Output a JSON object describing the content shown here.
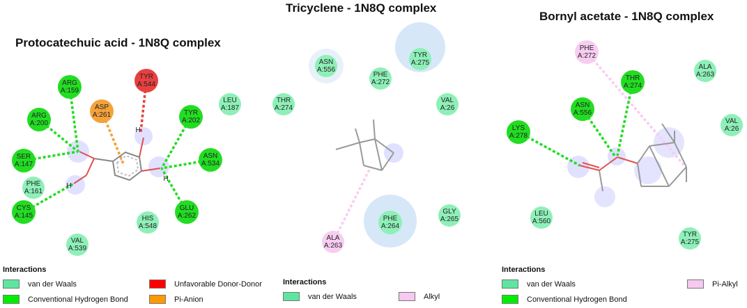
{
  "panels": [
    {
      "title": "Protocatechuic acid - 1N8Q complex",
      "residues": [
        {
          "name": "ARG",
          "id": "A:159",
          "type": "hbond"
        },
        {
          "name": "ARG",
          "id": "A:200",
          "type": "hbond"
        },
        {
          "name": "SER",
          "id": "A:147",
          "type": "hbond"
        },
        {
          "name": "PHE",
          "id": "A:161",
          "type": "vdw"
        },
        {
          "name": "CYS",
          "id": "A:145",
          "type": "hbond"
        },
        {
          "name": "VAL",
          "id": "A:539",
          "type": "vdw"
        },
        {
          "name": "ASP",
          "id": "A:261",
          "type": "pi-anion"
        },
        {
          "name": "TYR",
          "id": "A:544",
          "type": "unfavorable"
        },
        {
          "name": "TYR",
          "id": "A:202",
          "type": "hbond"
        },
        {
          "name": "LEU",
          "id": "A:187",
          "type": "vdw"
        },
        {
          "name": "ASN",
          "id": "A:534",
          "type": "hbond"
        },
        {
          "name": "GLU",
          "id": "A:262",
          "type": "hbond"
        },
        {
          "name": "HIS",
          "id": "A:548",
          "type": "vdw"
        }
      ],
      "atom_labels": [
        "H",
        "H",
        "H"
      ],
      "legend_title": "Interactions",
      "legend": [
        {
          "label": "van der Waals",
          "color": "#5ee6a0"
        },
        {
          "label": "Unfavorable Donor-Donor",
          "color": "#ff0000"
        },
        {
          "label": "Conventional Hydrogen Bond",
          "color": "#00ee00"
        },
        {
          "label": "Pi-Anion",
          "color": "#ff9900"
        }
      ]
    },
    {
      "title": "Tricyclene - 1N8Q complex",
      "residues": [
        {
          "name": "ASN",
          "id": "A:556",
          "type": "vdw"
        },
        {
          "name": "TYR",
          "id": "A:275",
          "type": "vdw"
        },
        {
          "name": "PHE",
          "id": "A:272",
          "type": "vdw"
        },
        {
          "name": "THR",
          "id": "A:274",
          "type": "vdw"
        },
        {
          "name": "VAL",
          "id": "A:26",
          "type": "vdw"
        },
        {
          "name": "GLY",
          "id": "A:265",
          "type": "vdw"
        },
        {
          "name": "PHE",
          "id": "A:264",
          "type": "vdw"
        },
        {
          "name": "ALA",
          "id": "A:263",
          "type": "alkyl"
        }
      ],
      "legend_title": "Interactions",
      "legend": [
        {
          "label": "van der Waals",
          "color": "#5ee6a0"
        },
        {
          "label": "Alkyl",
          "color": "#f7c8f0"
        }
      ]
    },
    {
      "title": "Bornyl acetate - 1N8Q complex",
      "residues": [
        {
          "name": "PHE",
          "id": "A:272",
          "type": "pi-alkyl"
        },
        {
          "name": "ALA",
          "id": "A:263",
          "type": "vdw"
        },
        {
          "name": "THR",
          "id": "A:274",
          "type": "hbond"
        },
        {
          "name": "ASN",
          "id": "A:556",
          "type": "hbond"
        },
        {
          "name": "LYS",
          "id": "A:278",
          "type": "hbond"
        },
        {
          "name": "VAL",
          "id": "A:26",
          "type": "vdw"
        },
        {
          "name": "LEU",
          "id": "A:560",
          "type": "vdw"
        },
        {
          "name": "TYR",
          "id": "A:275",
          "type": "vdw"
        }
      ],
      "legend_title": "Interactions",
      "legend": [
        {
          "label": "van der Waals",
          "color": "#5ee6a0"
        },
        {
          "label": "Pi-Alkyl",
          "color": "#f7c8f0"
        },
        {
          "label": "Conventional Hydrogen Bond",
          "color": "#00ee00"
        }
      ]
    }
  ],
  "colors": {
    "vdw": "#8ef0b8",
    "hbond": "#22dd22",
    "pi-anion": "#f4a23a",
    "unfavorable": "#e84040",
    "alkyl": "#f8cdf2",
    "pi-alkyl": "#f8cdf2"
  }
}
